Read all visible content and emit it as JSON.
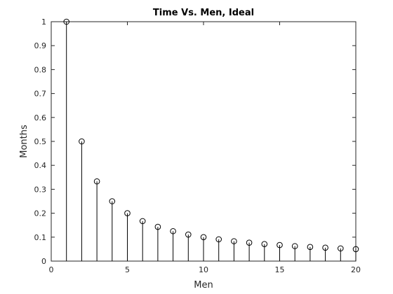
{
  "chart_data": {
    "type": "scatter",
    "style": "stem",
    "title": "Time Vs. Men, Ideal",
    "xlabel": "Men",
    "ylabel": "Months",
    "xlim": [
      0,
      20
    ],
    "ylim": [
      0,
      1
    ],
    "xticks": [
      0,
      5,
      10,
      15,
      20
    ],
    "yticks": [
      0,
      0.1,
      0.2,
      0.3,
      0.4,
      0.5,
      0.6,
      0.7,
      0.8,
      0.9,
      1
    ],
    "ytick_labels": [
      "0",
      "0.1",
      "0.2",
      "0.3",
      "0.4",
      "0.5",
      "0.6",
      "0.7",
      "0.8",
      "0.9",
      "1"
    ],
    "xtick_labels": [
      "0",
      "5",
      "10",
      "15",
      "20"
    ],
    "grid": false,
    "marker": "circle",
    "color": "#000000",
    "x": [
      1,
      2,
      3,
      4,
      5,
      6,
      7,
      8,
      9,
      10,
      11,
      12,
      13,
      14,
      15,
      16,
      17,
      18,
      19,
      20
    ],
    "y": [
      1,
      0.5,
      0.333,
      0.25,
      0.2,
      0.167,
      0.143,
      0.125,
      0.111,
      0.1,
      0.091,
      0.083,
      0.077,
      0.071,
      0.067,
      0.0625,
      0.059,
      0.056,
      0.053,
      0.05
    ]
  }
}
